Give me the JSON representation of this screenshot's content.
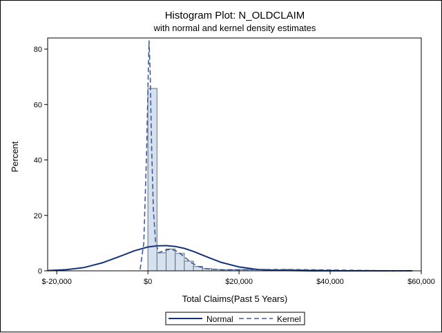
{
  "chart_data": {
    "type": "bar",
    "title": "Histogram Plot: N_OLDCLAIM",
    "subtitle": "with normal and kernel density estimates",
    "xlabel": "Total Claims(Past 5 Years)",
    "ylabel": "Percent",
    "xlim": [
      -22000,
      60000
    ],
    "ylim": [
      0,
      84
    ],
    "x_ticks": [
      -20000,
      0,
      20000,
      40000,
      60000
    ],
    "x_tick_labels": [
      "$-20,000",
      "$0",
      "$20,000",
      "$40,000",
      "$60,000"
    ],
    "y_ticks": [
      0,
      20,
      40,
      60,
      80
    ],
    "y_tick_labels": [
      "0",
      "20",
      "40",
      "60",
      "80"
    ],
    "bins": {
      "width": 2000,
      "starts": [
        0,
        2000,
        4000,
        6000,
        8000,
        10000,
        12000,
        14000,
        16000,
        18000,
        20000,
        22000,
        24000,
        26000,
        28000,
        30000,
        32000,
        34000,
        36000,
        38000,
        40000,
        42000,
        44000
      ],
      "values": [
        65.8,
        6.5,
        7.9,
        6.3,
        3.5,
        1.6,
        0.8,
        0.5,
        0.4,
        0.4,
        0.5,
        0.5,
        0.5,
        0.4,
        0.4,
        0.5,
        0.4,
        0.3,
        0.3,
        0.2,
        0.2,
        0.1,
        0.1
      ]
    },
    "normal": {
      "name": "Normal",
      "x": [
        -22000,
        -18000,
        -14000,
        -10000,
        -6000,
        -3000,
        0,
        2000,
        4000,
        6000,
        8000,
        10000,
        13000,
        16000,
        20000,
        24000,
        28000,
        32000,
        36000,
        40000,
        46000,
        52000,
        58000
      ],
      "y": [
        0.1,
        0.4,
        1.2,
        2.9,
        5.3,
        7.2,
        8.6,
        9.0,
        9.1,
        8.8,
        8.1,
        7.0,
        5.0,
        3.1,
        1.4,
        0.5,
        0.2,
        0.1,
        0.0,
        0.0,
        0.0,
        0.0,
        0.0
      ]
    },
    "kernel": {
      "name": "Kernel",
      "x": [
        -1700,
        -900,
        -300,
        0,
        250,
        500,
        800,
        1200,
        1700,
        2400,
        3500,
        5000,
        6500,
        8000,
        9500,
        11000,
        13000,
        16000,
        20000,
        25000,
        30000,
        35000,
        40000,
        45000,
        50000,
        57000
      ],
      "y": [
        0.5,
        10,
        42,
        65,
        83,
        72,
        46,
        22,
        10,
        6.5,
        7.3,
        7.8,
        7.0,
        5.0,
        3.0,
        1.6,
        0.7,
        0.4,
        0.4,
        0.5,
        0.5,
        0.4,
        0.3,
        0.2,
        0.1,
        0.0
      ]
    },
    "legend": {
      "placement": "bottom-center",
      "entries": [
        {
          "name": "Normal",
          "style": "solid"
        },
        {
          "name": "Kernel",
          "style": "dashed"
        }
      ]
    },
    "colors": {
      "bar_fill": "#d6e1ef",
      "bar_stroke": "#666e7a",
      "normal_line": "#13317a",
      "kernel_line": "#3d5a99",
      "axis": "#000000"
    },
    "grid": false
  }
}
